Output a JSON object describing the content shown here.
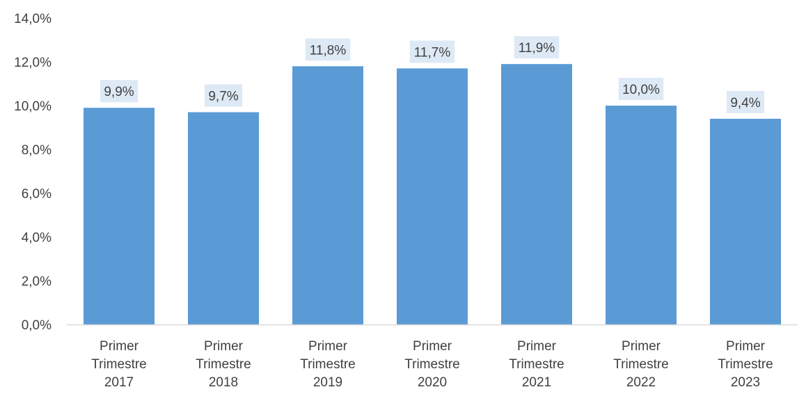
{
  "chart_data": {
    "type": "bar",
    "categories": [
      [
        "Primer",
        "Trimestre",
        "2017"
      ],
      [
        "Primer",
        "Trimestre",
        "2018"
      ],
      [
        "Primer",
        "Trimestre",
        "2019"
      ],
      [
        "Primer",
        "Trimestre",
        "2020"
      ],
      [
        "Primer",
        "Trimestre",
        "2021"
      ],
      [
        "Primer",
        "Trimestre",
        "2022"
      ],
      [
        "Primer",
        "Trimestre",
        "2023"
      ]
    ],
    "values": [
      9.9,
      9.7,
      11.8,
      11.7,
      11.9,
      10.0,
      9.4
    ],
    "data_labels": [
      "9,9%",
      "9,7%",
      "11,8%",
      "11,7%",
      "11,9%",
      "10,0%",
      "9,4%"
    ],
    "ylim": [
      0,
      14
    ],
    "yticks": [
      0,
      2,
      4,
      6,
      8,
      10,
      12,
      14
    ],
    "ytick_labels": [
      "0,0%",
      "2,0%",
      "4,0%",
      "6,0%",
      "8,0%",
      "10,0%",
      "12,0%",
      "14,0%"
    ],
    "title": "",
    "xlabel": "",
    "ylabel": "",
    "grid": false,
    "colors": {
      "bar": "#5b9bd5",
      "data_label_bg": "#dde9f5",
      "axis": "#d9d9d9",
      "text": "#404040"
    }
  }
}
